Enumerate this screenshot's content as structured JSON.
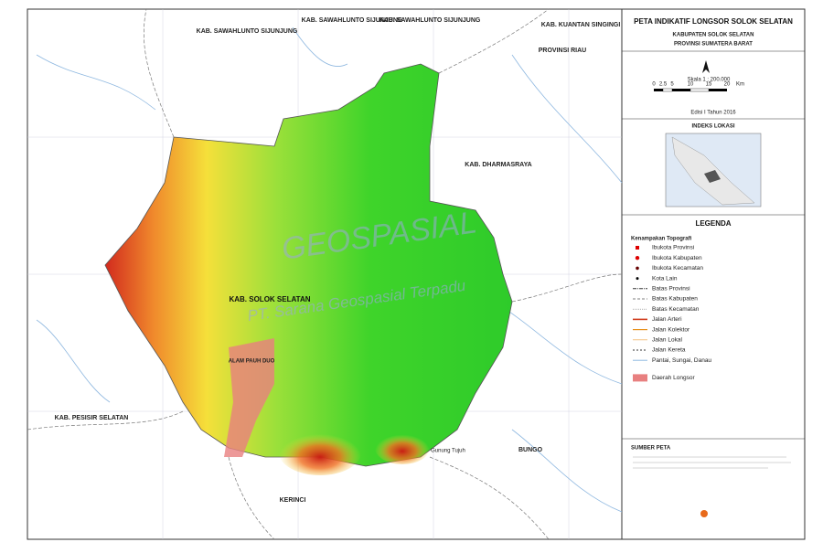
{
  "header": {
    "title": "PETA INDIKATIF LONGSOR SOLOK SELATAN",
    "subtitle": "KABUPATEN SOLOK SELATAN",
    "province": "PROVINSI SUMATERA BARAT"
  },
  "scale": {
    "text": "Skala 1 : 200.000",
    "labels": [
      "0",
      "2.5",
      "5",
      "10",
      "15",
      "20"
    ],
    "unit": "Km"
  },
  "edition": "Edisi I Tahun 2016",
  "index_map": {
    "title": "INDEKS LOKASI"
  },
  "legend": {
    "title": "LEGENDA",
    "group": "Kenampakan Topografi",
    "items": [
      "Ibukota Provinsi",
      "Ibukota Kabupaten",
      "Ibukota Kecamatan",
      "Kota Lain",
      "Batas Provinsi",
      "Batas Kabupaten",
      "Batas Kecamatan",
      "Jalan Arteri",
      "Jalan Kolektor",
      "Jalan Lokal",
      "Jalan Kereta",
      "Pantai, Sungai, Danau",
      "Daerah Longsor"
    ]
  },
  "source": {
    "title": "SUMBER PETA"
  },
  "map": {
    "labels": [
      "KAB. SAWAHLUNTO SIJUNJUNG",
      "KAB. SAWAHLUNTO SIJUNJUNG",
      "KAB. SAWAHLUNTO SIJUNJUNG",
      "KAB. KUANTAN SINGINGI",
      "PROVINSI RIAU",
      "KAB. DHARMASRAYA",
      "KAB. SOLOK SELATAN",
      "ALAM PAUH DUO",
      "KAB. PESISIR SELATAN",
      "KERINCI",
      "BUNGO",
      "Gunung Tujuh"
    ],
    "watermark": "GEOSPASIAL",
    "watermark_sub": "PT. Sarana Geospasial Terpadu"
  }
}
